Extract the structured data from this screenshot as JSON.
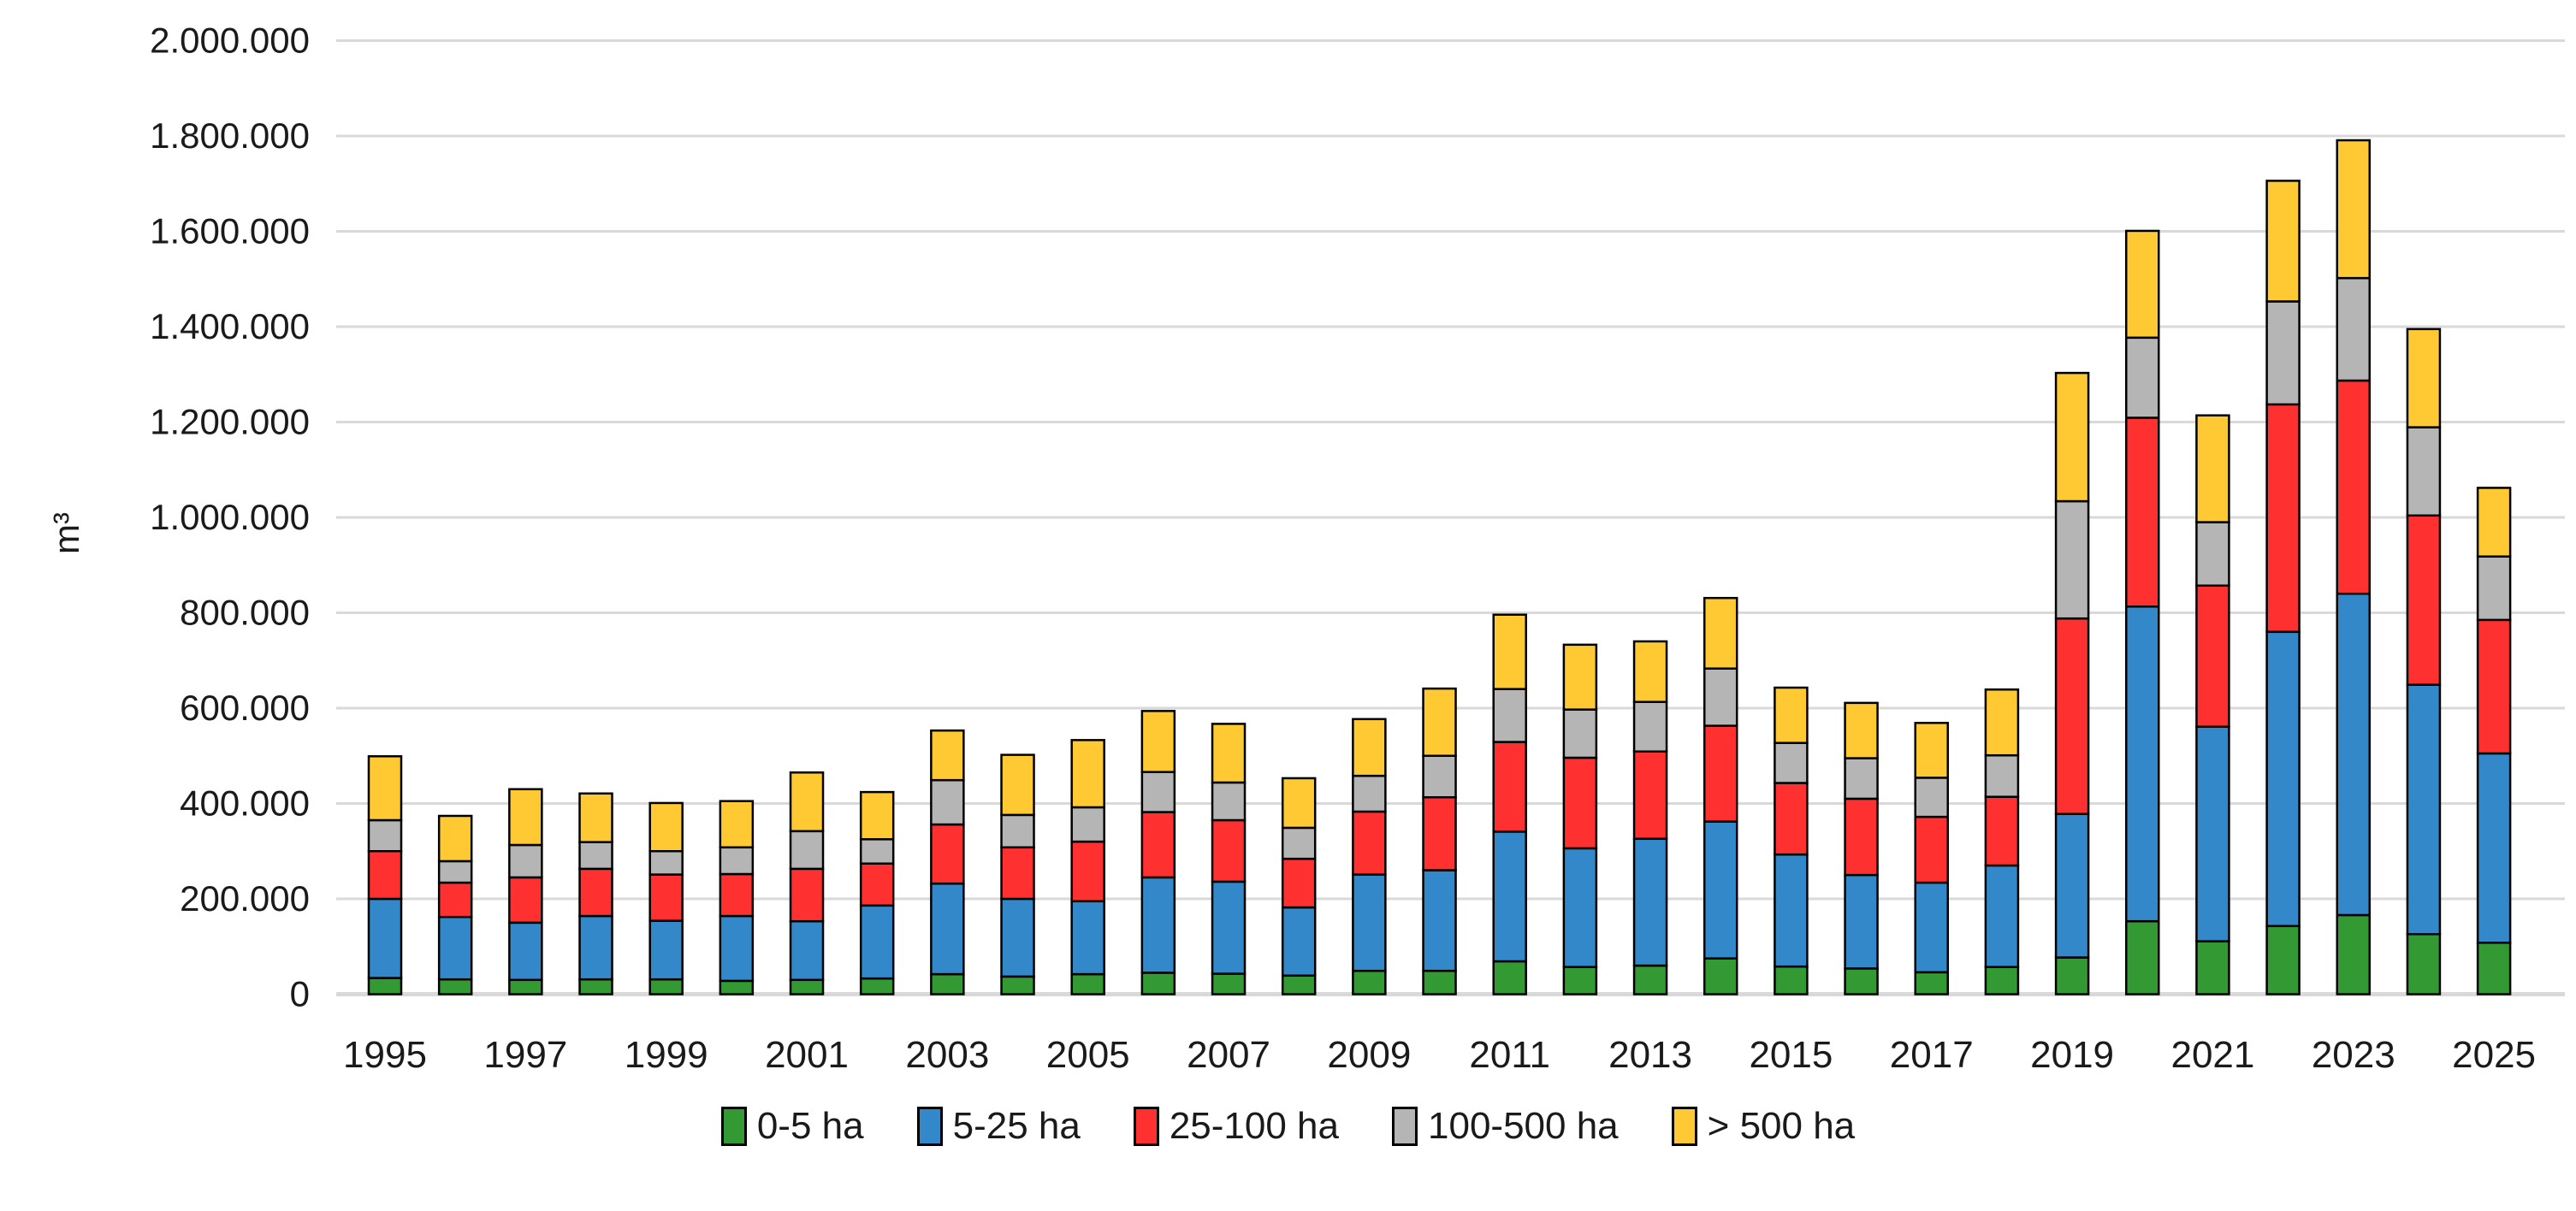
{
  "page": {
    "background_color": "#ffffff",
    "text_color": "#1a1a1a",
    "grid_color": "#d9d9d9"
  },
  "chart_data": {
    "type": "bar",
    "stacked": true,
    "title": "",
    "xlabel": "",
    "ylabel": "m³",
    "grid": true,
    "legend_position": "bottom",
    "ylim": [
      0,
      2000000
    ],
    "ytick_step": 200000,
    "ytick_labels": [
      "0",
      "200.000",
      "400.000",
      "600.000",
      "800.000",
      "1.000.000",
      "1.200.000",
      "1.400.000",
      "1.600.000",
      "1.800.000",
      "2.000.000"
    ],
    "xtick_labels": [
      "1995",
      "1997",
      "1999",
      "2001",
      "2003",
      "2005",
      "2007",
      "2009",
      "2011",
      "2013",
      "2015",
      "2017",
      "2019",
      "2021",
      "2023",
      "2025"
    ],
    "years": [
      1995,
      1996,
      1997,
      1998,
      1999,
      2000,
      2001,
      2002,
      2003,
      2004,
      2005,
      2006,
      2007,
      2008,
      2009,
      2010,
      2011,
      2012,
      2013,
      2014,
      2015,
      2016,
      2017,
      2018,
      2019,
      2020,
      2021,
      2022,
      2023,
      2024,
      2025
    ],
    "series": [
      {
        "name": "0-5 ha",
        "color": "#339933",
        "values": [
          34000,
          31000,
          30000,
          31000,
          31000,
          28000,
          30000,
          33000,
          42000,
          37000,
          42000,
          45000,
          43000,
          39000,
          49000,
          49000,
          69000,
          57000,
          60000,
          75000,
          58000,
          54000,
          46000,
          57000,
          77000,
          153000,
          111000,
          143000,
          166000,
          126000,
          108000
        ]
      },
      {
        "name": "5-25 ha",
        "color": "#3288c8",
        "values": [
          166000,
          131000,
          120000,
          133000,
          123000,
          136000,
          123000,
          153000,
          190000,
          163000,
          153000,
          200000,
          193000,
          143000,
          202000,
          211000,
          272000,
          249000,
          266000,
          287000,
          235000,
          196000,
          188000,
          213000,
          301000,
          660000,
          450000,
          617000,
          674000,
          523000,
          397000
        ]
      },
      {
        "name": "25-100 ha",
        "color": "#ff3030",
        "values": [
          100000,
          72000,
          95000,
          99000,
          97000,
          88000,
          110000,
          88000,
          124000,
          108000,
          125000,
          137000,
          129000,
          102000,
          132000,
          153000,
          188000,
          190000,
          183000,
          201000,
          150000,
          160000,
          138000,
          144000,
          410000,
          396000,
          296000,
          477000,
          447000,
          355000,
          280000
        ]
      },
      {
        "name": "100-500 ha",
        "color": "#b5b5b5",
        "values": [
          65000,
          45000,
          68000,
          56000,
          49000,
          56000,
          79000,
          51000,
          93000,
          68000,
          72000,
          84000,
          79000,
          65000,
          75000,
          87000,
          111000,
          101000,
          104000,
          120000,
          84000,
          85000,
          82000,
          87000,
          246000,
          168000,
          133000,
          216000,
          215000,
          185000,
          133000
        ]
      },
      {
        "name": "> 500 ha",
        "color": "#ffc933",
        "values": [
          134000,
          95000,
          117000,
          102000,
          101000,
          97000,
          123000,
          99000,
          104000,
          126000,
          141000,
          128000,
          123000,
          104000,
          119000,
          141000,
          156000,
          136000,
          127000,
          148000,
          116000,
          116000,
          115000,
          138000,
          269000,
          224000,
          224000,
          253000,
          289000,
          206000,
          144000
        ]
      }
    ]
  }
}
